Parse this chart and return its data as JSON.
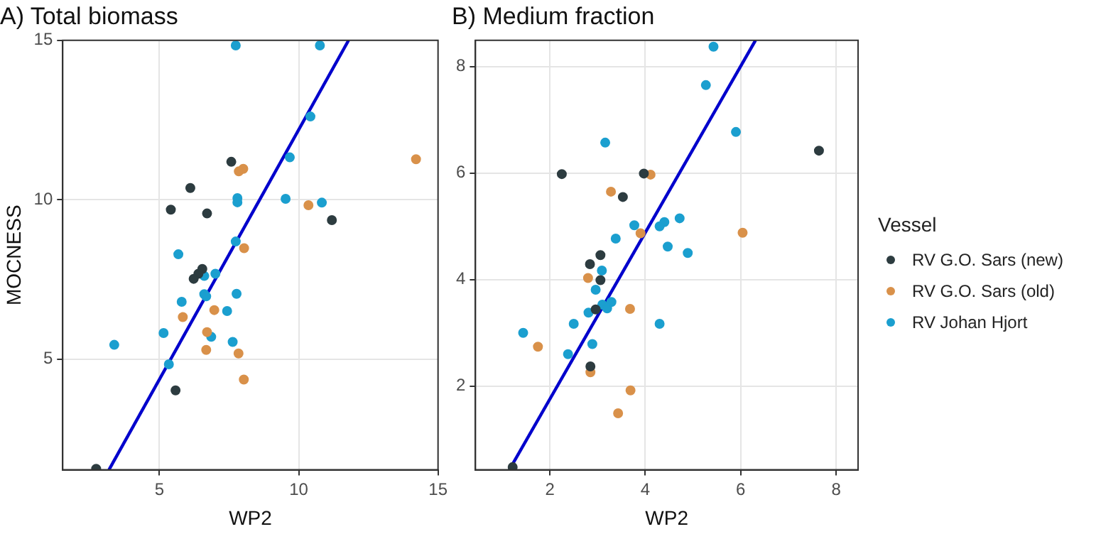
{
  "chart_data": [
    {
      "type": "scatter",
      "title": "A) Total biomass",
      "xlabel": "WP2",
      "ylabel": "MOCNESS",
      "xlim": [
        1.53,
        15
      ],
      "ylim": [
        1.53,
        15
      ],
      "xticks": [
        5,
        10,
        15
      ],
      "yticks": [
        5,
        10,
        15
      ],
      "grid": true,
      "marker": "circle",
      "legend": false,
      "series": [
        {
          "color": "#2d3c40",
          "x": [
            2.73,
            7.58,
            6.11,
            5.41,
            6.71,
            11.19,
            6.54,
            6.4,
            6.23,
            5.58
          ],
          "values": [
            1.56,
            11.19,
            10.37,
            9.69,
            9.57,
            9.36,
            7.83,
            7.68,
            7.52,
            4.02
          ]
        },
        {
          "color": "#d9914a",
          "x": [
            14.21,
            8.01,
            7.85,
            10.35,
            8.04,
            5.84,
            6.97,
            6.71,
            6.68,
            7.84,
            8.03
          ],
          "values": [
            11.27,
            10.97,
            10.89,
            9.83,
            8.48,
            6.32,
            6.54,
            5.85,
            5.29,
            5.18,
            4.36
          ]
        },
        {
          "color": "#1b9fcf",
          "x": [
            7.74,
            10.76,
            10.42,
            9.68,
            7.8,
            7.8,
            9.53,
            10.83,
            7.74,
            5.68,
            7.01,
            6.61,
            5.8,
            6.61,
            6.68,
            7.77,
            7.43,
            5.15,
            6.86,
            7.63,
            3.38,
            5.34
          ],
          "values": [
            14.84,
            14.84,
            12.61,
            11.33,
            10.05,
            9.92,
            10.03,
            9.91,
            8.69,
            8.29,
            7.68,
            7.61,
            6.8,
            7.04,
            6.97,
            7.05,
            6.51,
            5.82,
            5.7,
            5.54,
            5.45,
            4.84
          ]
        },
        {
          "type": "line",
          "marker": "none",
          "color": "#0000cc",
          "x": [
            3.19,
            11.79
          ],
          "values": [
            1.53,
            15
          ]
        }
      ]
    },
    {
      "type": "scatter",
      "title": "B) Medium fraction",
      "xlabel": "WP2",
      "legend_title": "Vessel",
      "xlim": [
        0.44,
        8.46
      ],
      "ylim": [
        0.43,
        8.49
      ],
      "xticks": [
        2,
        4,
        6,
        8
      ],
      "yticks": [
        2,
        4,
        6,
        8
      ],
      "grid": true,
      "marker": "circle",
      "legend": "right",
      "series": [
        {
          "name": "RV G.O. Sars (new)",
          "color": "#2d3c40",
          "x": [
            1.22,
            2.25,
            3.97,
            3.53,
            7.64,
            3.06,
            2.84,
            3.06,
            2.96,
            2.85
          ],
          "values": [
            0.48,
            5.98,
            5.99,
            5.55,
            6.42,
            4.46,
            4.29,
            3.99,
            3.44,
            2.37
          ]
        },
        {
          "name": "RV G.O. Sars (old)",
          "color": "#d9914a",
          "x": [
            4.11,
            3.28,
            3.9,
            6.04,
            2.8,
            3.68,
            1.75,
            2.85,
            3.69,
            3.43
          ],
          "values": [
            5.97,
            5.65,
            4.87,
            4.88,
            4.03,
            3.45,
            2.74,
            2.26,
            1.92,
            1.49
          ]
        },
        {
          "name": "RV Johan Hjort",
          "color": "#1b9fcf",
          "x": [
            5.43,
            5.27,
            5.9,
            3.16,
            4.72,
            4.4,
            4.3,
            3.77,
            3.38,
            4.47,
            4.89,
            3.09,
            2.96,
            3.29,
            3.1,
            3.2,
            2.81,
            2.5,
            4.3,
            1.44,
            2.89,
            2.38
          ],
          "values": [
            8.37,
            7.65,
            6.77,
            6.57,
            5.15,
            5.08,
            5.0,
            5.02,
            4.77,
            4.62,
            4.5,
            4.17,
            3.81,
            3.58,
            3.53,
            3.46,
            3.38,
            3.17,
            3.17,
            3.0,
            2.79,
            2.6
          ]
        },
        {
          "type": "line",
          "marker": "none",
          "color": "#0000cc",
          "x": [
            1.15,
            6.31
          ],
          "values": [
            0.43,
            8.49
          ]
        }
      ]
    }
  ]
}
